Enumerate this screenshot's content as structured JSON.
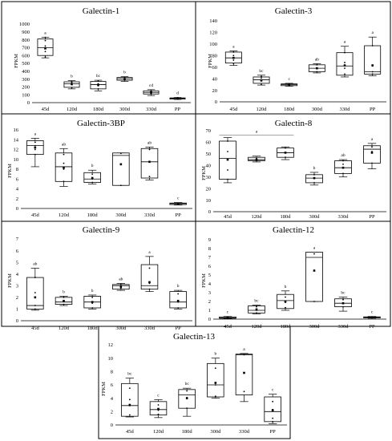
{
  "figure": {
    "categories": [
      "45d",
      "120d",
      "180d",
      "300d",
      "330d",
      "PP"
    ]
  },
  "chart_data": [
    {
      "type": "box",
      "title": "Galectin-1",
      "ylabel": "FPKM",
      "ylim": [
        0,
        1000
      ],
      "yticks": [
        0,
        100,
        200,
        300,
        400,
        500,
        600,
        700,
        800,
        900,
        1000
      ],
      "categories": [
        "45d",
        "120d",
        "180d",
        "300d",
        "330d",
        "PP"
      ],
      "boxes": [
        {
          "min": 570,
          "q1": 600,
          "median": 700,
          "q3": 810,
          "max": 830,
          "mean": 690,
          "points": [
            580,
            650,
            720,
            790,
            830
          ],
          "letter": "a"
        },
        {
          "min": 175,
          "q1": 195,
          "median": 240,
          "q3": 265,
          "max": 280,
          "mean": 235,
          "points": [
            190,
            230,
            255,
            270
          ],
          "letter": "b"
        },
        {
          "min": 150,
          "q1": 175,
          "median": 230,
          "q3": 270,
          "max": 285,
          "mean": 225,
          "points": [
            175,
            215,
            240,
            275
          ],
          "letter": "bc"
        },
        {
          "min": 270,
          "q1": 285,
          "median": 305,
          "q3": 320,
          "max": 330,
          "mean": 300,
          "points": [
            290,
            305,
            320
          ],
          "letter": "b"
        },
        {
          "min": 90,
          "q1": 110,
          "median": 130,
          "q3": 150,
          "max": 165,
          "mean": 130,
          "points": [
            110,
            130,
            150
          ],
          "letter": "cd"
        },
        {
          "min": 40,
          "q1": 45,
          "median": 55,
          "q3": 60,
          "max": 65,
          "mean": 55,
          "points": [
            48,
            55,
            62
          ],
          "letter": "d"
        }
      ],
      "grid": false,
      "legend": "none"
    },
    {
      "type": "box",
      "title": "Galectin-3",
      "ylabel": "FPKM",
      "ylim": [
        0,
        140
      ],
      "yticks": [
        0,
        20,
        40,
        60,
        80,
        100,
        120,
        140
      ],
      "categories": [
        "45d",
        "120d",
        "180d",
        "300d",
        "330d",
        "PP"
      ],
      "boxes": [
        {
          "min": 63,
          "q1": 67,
          "median": 76,
          "q3": 86,
          "max": 88,
          "mean": 76,
          "points": [
            66,
            72,
            80,
            86
          ],
          "letter": "a"
        },
        {
          "min": 29,
          "q1": 32,
          "median": 38,
          "q3": 43,
          "max": 46,
          "mean": 37,
          "points": [
            30,
            36,
            41,
            44
          ],
          "letter": "bc"
        },
        {
          "min": 27,
          "q1": 28,
          "median": 30,
          "q3": 31,
          "max": 32,
          "mean": 30,
          "points": [
            28,
            30,
            31
          ],
          "letter": "c"
        },
        {
          "min": 50,
          "q1": 52,
          "median": 58,
          "q3": 64,
          "max": 66,
          "mean": 58,
          "points": [
            52,
            58,
            64
          ],
          "letter": "ab"
        },
        {
          "min": 43,
          "q1": 46,
          "median": 62,
          "q3": 85,
          "max": 96,
          "mean": 63,
          "points": [
            48,
            58,
            68,
            85
          ],
          "letter": "a"
        },
        {
          "min": 45,
          "q1": 48,
          "median": 52,
          "q3": 97,
          "max": 112,
          "mean": 63,
          "points": [
            48,
            52,
            62,
            97
          ],
          "letter": "a"
        }
      ],
      "grid": false,
      "legend": "none"
    },
    {
      "type": "box",
      "title": "Galectin-3BP",
      "ylabel": "FPKM",
      "ylim": [
        0,
        16
      ],
      "yticks": [
        0,
        2,
        4,
        6,
        8,
        10,
        12,
        14,
        16
      ],
      "categories": [
        "45d",
        "120d",
        "180d",
        "300d",
        "330d",
        "PP"
      ],
      "boxes": [
        {
          "min": 8.5,
          "q1": 11,
          "median": 12.8,
          "q3": 13.8,
          "max": 14.3,
          "mean": 12.4,
          "points": [
            11,
            12,
            12.8,
            13.5
          ],
          "letter": "a"
        },
        {
          "min": 4.5,
          "q1": 5.5,
          "median": 8.5,
          "q3": 11.3,
          "max": 12.2,
          "mean": 8.3,
          "points": [
            5.5,
            8,
            9.2,
            11
          ]
        },
        {
          "min": 5,
          "q1": 5.3,
          "median": 6,
          "q3": 7.3,
          "max": 7.8,
          "mean": 6.2,
          "points": [
            5.3,
            6,
            7
          ]
        },
        {
          "min": 4.7,
          "q1": 4.7,
          "median": 10.8,
          "q3": 11.3,
          "max": 11.3,
          "mean": 9,
          "points": [
            4.7,
            9,
            11.2
          ]
        },
        {
          "min": 5.8,
          "q1": 6.2,
          "median": 9.5,
          "q3": 12.2,
          "max": 12.5,
          "mean": 9.5,
          "points": [
            6.5,
            9.5,
            12
          ]
        },
        {
          "min": 0.7,
          "q1": 0.8,
          "median": 1,
          "q3": 1.1,
          "max": 1.2,
          "mean": 1,
          "points": [
            0.8,
            1,
            1.1
          ],
          "letter": "c"
        }
      ],
      "letters": [
        "a",
        "ab",
        "b",
        "",
        "ab",
        "c"
      ],
      "grid": false,
      "legend": "none"
    },
    {
      "type": "box",
      "title": "Galectin-8",
      "ylabel": "FPKM",
      "ylim": [
        0,
        70
      ],
      "yticks": [
        0,
        10,
        20,
        30,
        40,
        50,
        60,
        70
      ],
      "categories": [
        "45d",
        "120d",
        "180d",
        "300d",
        "330d",
        "PP"
      ],
      "boxes": [
        {
          "min": 25,
          "q1": 28,
          "median": 46,
          "q3": 61,
          "max": 64,
          "mean": 45,
          "points": [
            28,
            36,
            52,
            61
          ]
        },
        {
          "min": 43,
          "q1": 44,
          "median": 45,
          "q3": 47,
          "max": 48,
          "mean": 45,
          "points": [
            44,
            46
          ]
        },
        {
          "min": 45,
          "q1": 47,
          "median": 51,
          "q3": 55,
          "max": 56,
          "mean": 51,
          "points": [
            47,
            51,
            55
          ]
        },
        {
          "min": 23,
          "q1": 25,
          "median": 29,
          "q3": 32,
          "max": 34,
          "mean": 29,
          "points": [
            25,
            29,
            32
          ]
        },
        {
          "min": 30,
          "q1": 33,
          "median": 38,
          "q3": 44,
          "max": 45,
          "mean": 38,
          "points": [
            33,
            38,
            41,
            44
          ]
        },
        {
          "min": 37,
          "q1": 42,
          "median": 54,
          "q3": 57,
          "max": 59,
          "mean": 51,
          "points": [
            42,
            52,
            56
          ]
        }
      ],
      "letters": [
        "",
        "",
        "",
        "b",
        "ab",
        "a"
      ],
      "bracket": {
        "from": 0,
        "to": 2,
        "letter": "a"
      },
      "grid": false,
      "legend": "none"
    },
    {
      "type": "box",
      "title": "Galectin-9",
      "ylabel": "FPKM",
      "ylim": [
        0,
        7
      ],
      "yticks": [
        0,
        1,
        2,
        3,
        4,
        5,
        6,
        7
      ],
      "categories": [
        "45d",
        "120d",
        "180d",
        "300d",
        "330d",
        "PP"
      ],
      "boxes": [
        {
          "min": 0.9,
          "q1": 1,
          "median": 1.3,
          "q3": 3.7,
          "max": 4.5,
          "mean": 2,
          "points": [
            1,
            1.3,
            2.4,
            3.7
          ],
          "letter": "ab"
        },
        {
          "min": 1.3,
          "q1": 1.4,
          "median": 1.6,
          "q3": 2,
          "max": 2.1,
          "mean": 1.7,
          "points": [
            1.4,
            1.7,
            2
          ],
          "letter": "b"
        },
        {
          "min": 1,
          "q1": 1.1,
          "median": 1.6,
          "q3": 2.1,
          "max": 2.2,
          "mean": 1.6,
          "points": [
            1.1,
            1.5,
            2
          ],
          "letter": "b"
        },
        {
          "min": 2.6,
          "q1": 2.7,
          "median": 3,
          "q3": 3.1,
          "max": 3.2,
          "mean": 2.9,
          "points": [
            2.8,
            3.1
          ],
          "letter": "ab"
        },
        {
          "min": 2.5,
          "q1": 2.7,
          "median": 3,
          "q3": 4.8,
          "max": 5.5,
          "mean": 3.3,
          "points": [
            2.7,
            3.2,
            4.5
          ],
          "letter": "a"
        },
        {
          "min": 1,
          "q1": 1.1,
          "median": 1.6,
          "q3": 2.5,
          "max": 2.6,
          "mean": 1.7,
          "points": [
            1.1,
            1.6,
            2.3
          ],
          "letter": "b"
        }
      ],
      "grid": false,
      "legend": "none"
    },
    {
      "type": "box",
      "title": "Galectin-12",
      "ylabel": "FPKM",
      "ylim": [
        0,
        9
      ],
      "yticks": [
        0,
        1,
        2,
        3,
        4,
        5,
        6,
        7,
        8,
        9
      ],
      "categories": [
        "45d",
        "120d",
        "180d",
        "300d",
        "330d",
        "PP"
      ],
      "boxes": [
        {
          "min": 0.05,
          "q1": 0.1,
          "median": 0.15,
          "q3": 0.25,
          "max": 0.3,
          "mean": 0.15,
          "points": [
            0.1,
            0.2
          ],
          "letter": "c"
        },
        {
          "min": 0.6,
          "q1": 0.7,
          "median": 1,
          "q3": 1.5,
          "max": 1.6,
          "mean": 1.1,
          "points": [
            0.7,
            1,
            1.4
          ],
          "letter": "bc"
        },
        {
          "min": 1,
          "q1": 1.2,
          "median": 2.1,
          "q3": 2.8,
          "max": 3.2,
          "mean": 2,
          "points": [
            1.3,
            1.9,
            2.5
          ],
          "letter": "b"
        },
        {
          "min": 2,
          "q1": 2,
          "median": 7,
          "q3": 7.6,
          "max": 7.6,
          "mean": 5.5,
          "points": [
            2,
            5.5,
            7.4
          ],
          "letter": "a"
        },
        {
          "min": 0.9,
          "q1": 1.4,
          "median": 1.8,
          "q3": 2.3,
          "max": 2.5,
          "mean": 1.8,
          "points": [
            1.4,
            1.8,
            2.2
          ],
          "letter": "bc"
        },
        {
          "min": 0.1,
          "q1": 0.15,
          "median": 0.2,
          "q3": 0.25,
          "max": 0.3,
          "mean": 0.2,
          "points": [
            0.15,
            0.25
          ],
          "letter": "c"
        }
      ],
      "grid": false,
      "legend": "none"
    },
    {
      "type": "box",
      "title": "Galectin-13",
      "ylabel": "FPKM",
      "ylim": [
        0,
        12
      ],
      "yticks": [
        0,
        2,
        4,
        6,
        8,
        10,
        12
      ],
      "categories": [
        "45d",
        "120d",
        "180d",
        "300d",
        "330d",
        "PP"
      ],
      "boxes": [
        {
          "min": 1.2,
          "q1": 1.3,
          "median": 2.9,
          "q3": 6.2,
          "max": 7,
          "mean": 3,
          "points": [
            1.5,
            2.9,
            3.8,
            5.5
          ],
          "letter": "bc"
        },
        {
          "min": 1.1,
          "q1": 1.5,
          "median": 2.3,
          "q3": 3.5,
          "max": 3.8,
          "mean": 2.4,
          "points": [
            1.6,
            2.2,
            3
          ],
          "letter": "c"
        },
        {
          "min": 1.3,
          "q1": 2.5,
          "median": 4.5,
          "q3": 5.3,
          "max": 5.5,
          "mean": 4,
          "points": [
            2.5,
            4.1,
            5.1
          ],
          "letter": "bc"
        },
        {
          "min": 4,
          "q1": 4.2,
          "median": 6,
          "q3": 9.2,
          "max": 10,
          "mean": 6.3,
          "points": [
            4.3,
            6,
            8.5
          ],
          "letter": "b"
        },
        {
          "min": 3.5,
          "q1": 4.5,
          "median": 10.5,
          "q3": 10.6,
          "max": 10.7,
          "mean": 7.8,
          "points": [
            5,
            7.8,
            10.5
          ],
          "letter": "a"
        },
        {
          "min": 0.2,
          "q1": 0.5,
          "median": 2,
          "q3": 4.2,
          "max": 4.6,
          "mean": 2.2,
          "points": [
            0.5,
            1,
            2.3,
            3.5
          ],
          "letter": "c"
        }
      ],
      "grid": false,
      "legend": "none"
    }
  ]
}
